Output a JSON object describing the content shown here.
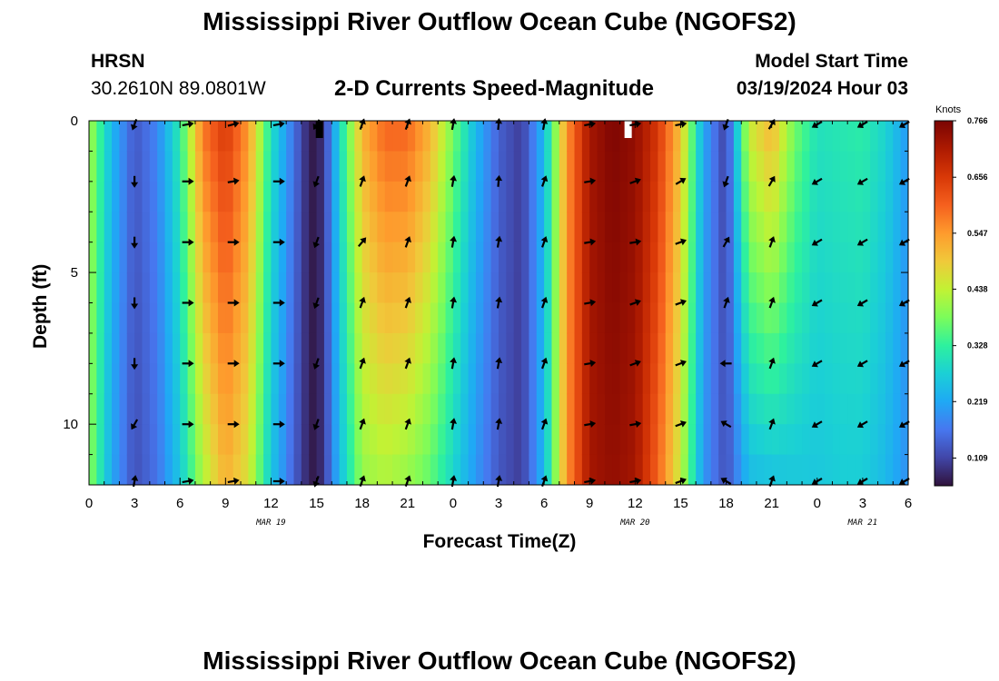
{
  "header": {
    "title": "Mississippi River Outflow Ocean Cube (NGOFS2)",
    "station_code": "HRSN",
    "station_coords": "30.2610N  89.0801W",
    "subtitle": "2-D Currents Speed-Magnitude",
    "model_start_label": "Model Start Time",
    "model_start_value": "03/19/2024 Hour 03"
  },
  "footer": {
    "title": "Mississippi River Outflow Ocean Cube (NGOFS2)"
  },
  "colors": {
    "scale": [
      "#30123b",
      "#4146a8",
      "#4777ef",
      "#1fa9f5",
      "#1bd0d5",
      "#2ef19e",
      "#7cfc5a",
      "#c2f234",
      "#f0c93a",
      "#fe9b2d",
      "#f5601e",
      "#d83807",
      "#ad1a01",
      "#7a0403"
    ]
  },
  "chart_data": {
    "type": "heatmap",
    "xlabel": "Forecast Time(Z)",
    "ylabel": "Depth (ft)",
    "x_range": [
      0,
      54
    ],
    "y_range": [
      0,
      12
    ],
    "x_ticks": [
      {
        "t": 0,
        "label": "0"
      },
      {
        "t": 3,
        "label": "3"
      },
      {
        "t": 6,
        "label": "6"
      },
      {
        "t": 9,
        "label": "9"
      },
      {
        "t": 12,
        "label": "12"
      },
      {
        "t": 15,
        "label": "15"
      },
      {
        "t": 18,
        "label": "18"
      },
      {
        "t": 21,
        "label": "21"
      },
      {
        "t": 24,
        "label": "0"
      },
      {
        "t": 27,
        "label": "3"
      },
      {
        "t": 30,
        "label": "6"
      },
      {
        "t": 33,
        "label": "9"
      },
      {
        "t": 36,
        "label": "12"
      },
      {
        "t": 39,
        "label": "15"
      },
      {
        "t": 42,
        "label": "18"
      },
      {
        "t": 45,
        "label": "21"
      },
      {
        "t": 48,
        "label": "0"
      },
      {
        "t": 51,
        "label": "3"
      },
      {
        "t": 54,
        "label": "6"
      }
    ],
    "date_labels": [
      {
        "t": 12,
        "label": "MAR 19"
      },
      {
        "t": 36,
        "label": "MAR 20"
      },
      {
        "t": 51,
        "label": "MAR 21"
      }
    ],
    "y_ticks": [
      {
        "depth": 0,
        "label": "0"
      },
      {
        "depth": 5,
        "label": "5"
      },
      {
        "depth": 10,
        "label": "10"
      }
    ],
    "colorbar": {
      "unit": "Knots",
      "min": 0.055,
      "max": 0.766,
      "labels": [
        "0.766",
        "0.656",
        "0.547",
        "0.438",
        "0.328",
        "0.219",
        "0.109"
      ],
      "label_values": [
        0.766,
        0.656,
        0.547,
        0.438,
        0.328,
        0.219,
        0.109
      ]
    },
    "speed_profile": {
      "hours": [
        0,
        1.5,
        3,
        4.5,
        6,
        7.5,
        9,
        10.5,
        12,
        13.5,
        14.5,
        15,
        15.5,
        16.5,
        18,
        19.5,
        21,
        22.5,
        24,
        25.5,
        27,
        28.5,
        30,
        31.5,
        33,
        34.5,
        36,
        37.5,
        39,
        40.5,
        42,
        43.5,
        45,
        46.5,
        48,
        49.5,
        51,
        52.5,
        54
      ],
      "knots_surface": [
        0.42,
        0.24,
        0.13,
        0.18,
        0.32,
        0.58,
        0.66,
        0.55,
        0.3,
        0.16,
        0.07,
        0.06,
        0.1,
        0.28,
        0.52,
        0.6,
        0.6,
        0.52,
        0.38,
        0.24,
        0.14,
        0.1,
        0.24,
        0.55,
        0.72,
        0.76,
        0.74,
        0.66,
        0.5,
        0.22,
        0.1,
        0.45,
        0.52,
        0.38,
        0.3,
        0.31,
        0.32,
        0.28,
        0.2
      ],
      "knots_bottom": [
        0.4,
        0.22,
        0.12,
        0.16,
        0.26,
        0.42,
        0.52,
        0.46,
        0.26,
        0.14,
        0.07,
        0.06,
        0.1,
        0.24,
        0.4,
        0.42,
        0.4,
        0.36,
        0.28,
        0.2,
        0.13,
        0.1,
        0.24,
        0.55,
        0.72,
        0.74,
        0.72,
        0.6,
        0.44,
        0.2,
        0.12,
        0.24,
        0.25,
        0.26,
        0.26,
        0.27,
        0.27,
        0.24,
        0.19
      ]
    },
    "vector_depths": [
      0,
      2,
      4,
      6,
      8,
      10,
      12
    ],
    "vector_times": [
      3,
      6.5,
      9.5,
      12.5,
      15,
      18,
      21,
      24,
      27,
      30,
      33,
      36,
      39,
      42,
      45,
      48,
      51,
      54
    ],
    "vector_dirs": [
      [
        200,
        80,
        75,
        80,
        210,
        20,
        20,
        10,
        5,
        10,
        80,
        80,
        80,
        200,
        30,
        240,
        240,
        240
      ],
      [
        180,
        90,
        80,
        90,
        200,
        20,
        20,
        10,
        5,
        20,
        80,
        70,
        60,
        200,
        30,
        240,
        240,
        240
      ],
      [
        180,
        90,
        90,
        90,
        200,
        40,
        20,
        10,
        10,
        20,
        80,
        80,
        70,
        30,
        20,
        240,
        240,
        240
      ],
      [
        180,
        90,
        90,
        90,
        200,
        20,
        20,
        10,
        10,
        20,
        80,
        70,
        70,
        20,
        20,
        240,
        240,
        240
      ],
      [
        180,
        90,
        90,
        90,
        200,
        20,
        20,
        10,
        10,
        20,
        80,
        70,
        70,
        270,
        20,
        240,
        240,
        240
      ],
      [
        210,
        90,
        90,
        90,
        200,
        20,
        20,
        10,
        10,
        20,
        80,
        80,
        70,
        300,
        20,
        240,
        240,
        240
      ],
      [
        10,
        80,
        80,
        90,
        200,
        20,
        20,
        10,
        10,
        20,
        80,
        80,
        70,
        300,
        20,
        240,
        240,
        240
      ]
    ]
  }
}
